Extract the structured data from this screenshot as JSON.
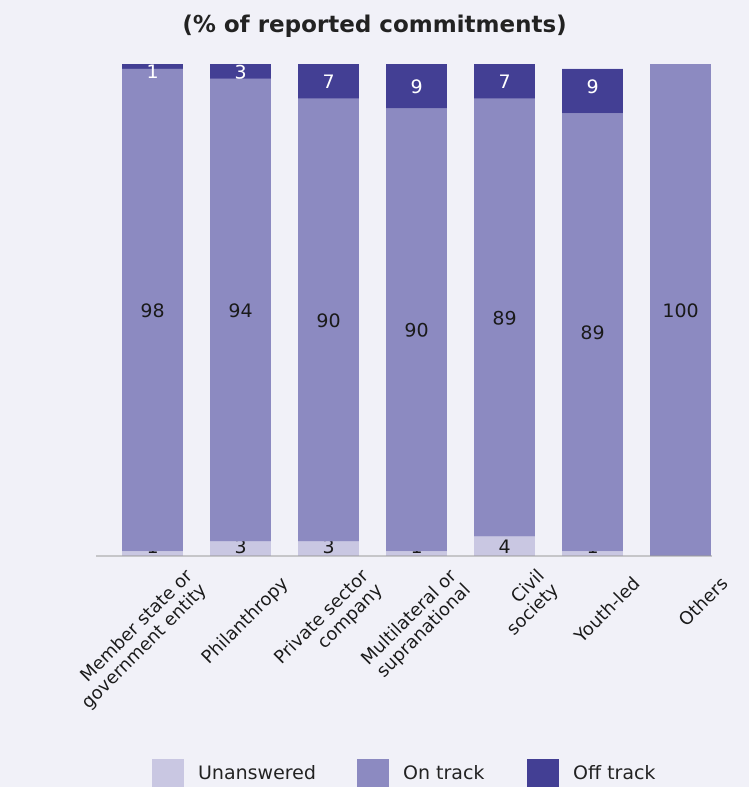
{
  "chart_data": {
    "type": "bar",
    "stacked": true,
    "title": "(% of reported commitments)",
    "categories": [
      [
        "Member state or",
        "government entity"
      ],
      [
        "Philanthropy"
      ],
      [
        "Private sector",
        "company"
      ],
      [
        "Multilateral or",
        "supranational"
      ],
      [
        "Civil",
        "society"
      ],
      [
        "Youth-led"
      ],
      [
        "Others"
      ]
    ],
    "series": [
      {
        "name": "Unanswered",
        "color": "#c9c7e2",
        "values": [
          1,
          3,
          3,
          1,
          4,
          1,
          0
        ],
        "labels": [
          "1",
          "3",
          "3",
          "1",
          "4",
          "1",
          ""
        ]
      },
      {
        "name": "On track",
        "color": "#8c8ac1",
        "values": [
          98,
          94,
          90,
          90,
          89,
          89,
          100
        ],
        "labels": [
          "98",
          "94",
          "90",
          "90",
          "89",
          "89",
          "100"
        ]
      },
      {
        "name": "Off track",
        "color": "#433f94",
        "values": [
          1,
          3,
          7,
          9,
          7,
          9,
          0
        ],
        "labels": [
          "1",
          "3",
          "7",
          "9",
          "7",
          "9",
          ""
        ]
      }
    ],
    "ylim": [
      0,
      100
    ],
    "grid": false,
    "legend_position": "bottom"
  }
}
